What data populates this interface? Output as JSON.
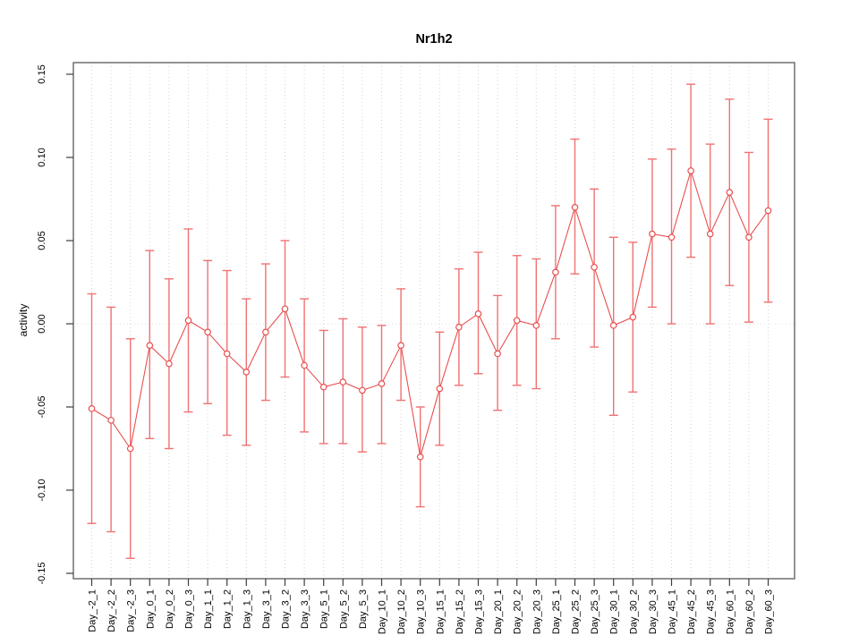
{
  "chart_data": {
    "type": "line",
    "subtype": "points-with-error-bars",
    "title": "Nr1h2",
    "xlabel": "",
    "ylabel": "activity",
    "ylim": [
      -0.15,
      0.15
    ],
    "ytick_values": [
      0.15,
      0.1,
      0.05,
      0.0,
      -0.05,
      -0.1,
      -0.15
    ],
    "ytick_labels": [
      "0.15",
      "0.10",
      "0.05",
      "0.00",
      "-0.05",
      "-0.10",
      "-0.15"
    ],
    "grid": "vertical dotted gridline at every category; horizontal dotted line at y=0",
    "legend": "none",
    "categories": [
      "Day_-2_1",
      "Day_-2_2",
      "Day_-2_3",
      "Day_0_1",
      "Day_0_2",
      "Day_0_3",
      "Day_1_1",
      "Day_1_2",
      "Day_1_3",
      "Day_3_1",
      "Day_3_2",
      "Day_3_3",
      "Day_5_1",
      "Day_5_2",
      "Day_5_3",
      "Day_10_1",
      "Day_10_2",
      "Day_10_3",
      "Day_15_1",
      "Day_15_2",
      "Day_15_3",
      "Day_20_1",
      "Day_20_2",
      "Day_20_3",
      "Day_25_1",
      "Day_25_2",
      "Day_25_3",
      "Day_30_1",
      "Day_30_2",
      "Day_30_3",
      "Day_45_1",
      "Day_45_2",
      "Day_45_3",
      "Day_60_1",
      "Day_60_2",
      "Day_60_3"
    ],
    "series": [
      {
        "name": "activity",
        "marker": "open-circle",
        "values": [
          -0.051,
          -0.058,
          -0.075,
          -0.013,
          -0.024,
          0.002,
          -0.005,
          -0.018,
          -0.029,
          -0.005,
          0.009,
          -0.025,
          -0.038,
          -0.035,
          -0.04,
          -0.036,
          -0.013,
          -0.08,
          -0.039,
          -0.002,
          0.006,
          -0.018,
          0.002,
          -0.001,
          0.031,
          0.07,
          0.034,
          -0.001,
          0.004,
          0.054,
          0.052,
          0.092,
          0.054,
          0.079,
          0.052,
          0.068
        ],
        "lower": [
          -0.12,
          -0.125,
          -0.141,
          -0.069,
          -0.075,
          -0.053,
          -0.048,
          -0.067,
          -0.073,
          -0.046,
          -0.032,
          -0.065,
          -0.072,
          -0.072,
          -0.077,
          -0.072,
          -0.046,
          -0.11,
          -0.073,
          -0.037,
          -0.03,
          -0.052,
          -0.037,
          -0.039,
          -0.009,
          0.03,
          -0.014,
          -0.055,
          -0.041,
          0.01,
          0.0,
          0.04,
          0.0,
          0.023,
          0.001,
          0.013
        ],
        "upper": [
          0.018,
          0.01,
          -0.009,
          0.044,
          0.027,
          0.057,
          0.038,
          0.032,
          0.015,
          0.036,
          0.05,
          0.015,
          -0.004,
          0.003,
          -0.002,
          -0.001,
          0.021,
          -0.05,
          -0.005,
          0.033,
          0.043,
          0.017,
          0.041,
          0.039,
          0.071,
          0.111,
          0.081,
          0.052,
          0.049,
          0.099,
          0.105,
          0.144,
          0.108,
          0.135,
          0.103,
          0.123
        ]
      }
    ],
    "colors": {
      "series_line": "#e84f4f",
      "marker_stroke": "#e84f4f",
      "error_bar": "#f07272",
      "gridline": "#d4d4d4",
      "zero_line": "#dcdcdc",
      "axis_box": "#595959",
      "tick": "#3d3d3d",
      "text": "#000000",
      "background": "#ffffff"
    }
  }
}
